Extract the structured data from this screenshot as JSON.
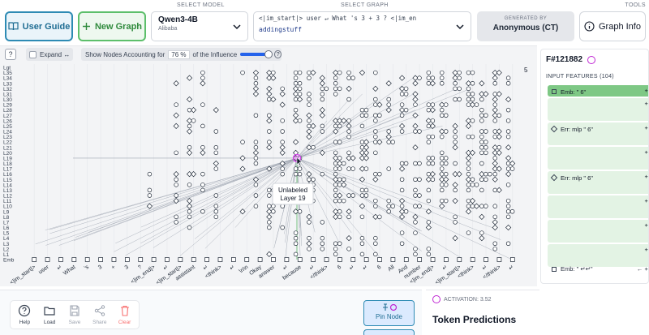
{
  "toolbar": {
    "user_guide_label": "User Guide",
    "new_graph_label": "New Graph",
    "select_model_label": "SELECT MODEL",
    "model_name": "Qwen3-4B",
    "model_org": "Alibaba",
    "select_graph_label": "SELECT GRAPH",
    "graph_prompt": "<|im_start|> user ↵ What 's  3 + 3 ? <|im_en",
    "graph_slug": "addingstuff",
    "generated_by_label": "GENERATED BY",
    "generated_by_value": "Anonymous (CT)",
    "tools_label": "TOOLS",
    "graph_info_label": "Graph Info"
  },
  "controls": {
    "help_label": "?",
    "expand_label": "Expand ↔",
    "influence_prefix": "Show Nodes Accounting for",
    "influence_percent": "76",
    "influence_pct_sign": "%",
    "influence_suffix": "of the Influence",
    "influence_fraction": 0.76,
    "help2_label": "?"
  },
  "graph": {
    "layer_labels": [
      "Lgt",
      "L35",
      "L34",
      "L33",
      "L32",
      "L31",
      "L30",
      "L29",
      "L28",
      "L27",
      "L26",
      "L25",
      "L24",
      "L23",
      "L22",
      "L21",
      "L20",
      "L19",
      "L18",
      "L17",
      "L16",
      "L15",
      "L14",
      "L13",
      "L12",
      "L11",
      "L10",
      "L9",
      "L8",
      "L7",
      "L6",
      "L5",
      "L4",
      "L3",
      "L2",
      "L1",
      "Emb"
    ],
    "token_labels": [
      "<|im_start|>",
      "user",
      "↵",
      "What",
      "'s",
      "3",
      "+",
      "3",
      "?",
      "<|im_end|>",
      "↵",
      "<|im_start|>",
      "assistant",
      "↵",
      "<think>",
      "↵",
      "\\n\\n",
      "Okay",
      "answer",
      "↵",
      "because",
      "↵",
      "</think>",
      "6",
      "↵",
      "↵",
      "6",
      "All",
      "And",
      "number",
      "<|im_end|>",
      "↵",
      "<|im_start|>",
      "<think>",
      "↵",
      "</think>",
      "↵"
    ],
    "tooltip_line1": "Unlabeled",
    "tooltip_line2": "Layer 19",
    "corner_marker": "5",
    "accent_color": "#d946ef",
    "edge_color": "#9ca3af"
  },
  "bottom": {
    "tools": [
      {
        "label": "Help",
        "icon": "help-icon",
        "enabled": true
      },
      {
        "label": "Load",
        "icon": "folder-icon",
        "enabled": true
      },
      {
        "label": "Save",
        "icon": "save-icon",
        "enabled": false
      },
      {
        "label": "Share",
        "icon": "share-icon",
        "enabled": false
      },
      {
        "label": "Clear",
        "icon": "trash-icon",
        "enabled": false
      }
    ],
    "pin_node_label": "Pin Node",
    "activation_label": "ACTIVATION: 3.52",
    "token_predictions_title": "Token Predictions"
  },
  "feature_panel": {
    "feature_id": "F#121882",
    "input_features_label": "INPUT FEATURES (104)",
    "items": [
      {
        "label": "Emb: \" 6\"",
        "marker": "square",
        "value": "+1",
        "value2": ""
      },
      {
        "label": "",
        "marker": "none",
        "value": "+0",
        "value2": "L"
      },
      {
        "label": "Err: mlp \" 6\"",
        "marker": "diamond",
        "value": "+0",
        "value2": "L"
      },
      {
        "label": "",
        "marker": "none",
        "value": "+0",
        "value2": "L"
      },
      {
        "label": "Err: mlp \" 6\"",
        "marker": "diamond",
        "value": "+0",
        "value2": "L"
      },
      {
        "label": "",
        "marker": "none",
        "value": "+0",
        "value2": "L"
      },
      {
        "label": "",
        "marker": "none",
        "value": "+0",
        "value2": "L"
      },
      {
        "label": "",
        "marker": "none",
        "value": "+0",
        "value2": "L"
      }
    ],
    "last_item_label": "Emb: \" ↵↵\"",
    "last_item_value": "← +0"
  }
}
